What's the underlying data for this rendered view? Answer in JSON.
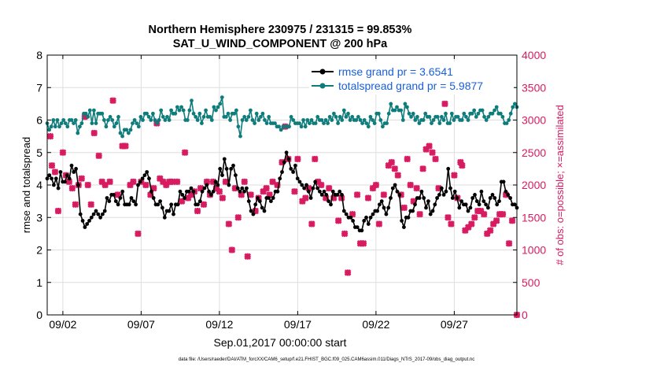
{
  "chart_data": {
    "type": "line",
    "title_line1": "Northern Hemisphere 230975 / 231315 = 99.853%",
    "title_line2": "SAT_U_WIND_COMPONENT @ 200 hPa",
    "xlabel": "Sep.01,2017 00:00:00 start",
    "ylabel_left": "rmse and totalspread",
    "ylabel_right": "# of obs: o=possible; ×=assimilated",
    "footer": "data file: /Users/raeder/DAI/ATM_forcXX/CAM6_setup/f.e21.FHIST_BGC.f09_025.CAM6assim.011/Diags_NTrS_2017-09/obs_diag_output.nc",
    "xlim": [
      1.0,
      31.0
    ],
    "ylim_left": [
      0,
      8
    ],
    "ylim_right": [
      0,
      4000
    ],
    "x_ticks": [
      2,
      7,
      12,
      17,
      22,
      27
    ],
    "x_tick_labels": [
      "09/02",
      "09/07",
      "09/12",
      "09/17",
      "09/22",
      "09/27"
    ],
    "y_left_ticks": [
      0,
      1,
      2,
      3,
      4,
      5,
      6,
      7,
      8
    ],
    "y_left_tick_labels": [
      "0",
      "1",
      "2",
      "3",
      "4",
      "5",
      "6",
      "7",
      "8"
    ],
    "y_right_ticks": [
      0,
      500,
      1000,
      1500,
      2000,
      2500,
      3000,
      3500,
      4000
    ],
    "y_right_tick_labels": [
      "0",
      "500",
      "1000",
      "1500",
      "2000",
      "2500",
      "3000",
      "3500",
      "4000"
    ],
    "grid": true,
    "legend_position": "top-right",
    "colors": {
      "rmse": "#000000",
      "spread": "#0e7c7b",
      "obs": "#d81b60",
      "legend_text": "#1a5fd6",
      "grid": "#dedede"
    },
    "series": [
      {
        "name": "rmse grand pr = 3.6541",
        "axis": "left",
        "values": [
          4.2,
          4.3,
          4.2,
          4.0,
          4.2,
          3.9,
          4.4,
          4.1,
          4.1,
          4.3,
          4.2,
          4.6,
          4.4,
          4.5,
          4.0,
          3.1,
          2.9,
          2.7,
          2.8,
          2.9,
          3.0,
          3.1,
          3.2,
          3.1,
          3.0,
          3.1,
          3.2,
          3.6,
          3.5,
          3.7,
          3.7,
          3.5,
          3.4,
          3.6,
          3.8,
          3.4,
          3.4,
          3.4,
          3.6,
          3.5,
          3.4,
          4.0,
          4.1,
          4.2,
          4.3,
          4.4,
          4.2,
          3.8,
          3.6,
          3.4,
          3.4,
          3.5,
          3.3,
          3.0,
          3.2,
          3.2,
          3.4,
          3.1,
          3.4,
          3.4,
          3.8,
          3.7,
          3.6,
          3.8,
          3.8,
          3.9,
          3.8,
          3.4,
          3.4,
          3.5,
          3.8,
          3.9,
          4.0,
          3.8,
          3.7,
          3.8,
          4.1,
          4.0,
          4.5,
          4.3,
          4.8,
          4.5,
          4.0,
          4.5,
          4.6,
          4.3,
          3.9,
          3.8,
          3.9,
          3.8,
          3.9,
          3.5,
          3.2,
          3.1,
          3.4,
          3.6,
          3.5,
          3.3,
          3.2,
          3.6,
          3.6,
          3.5,
          3.6,
          3.8,
          3.8,
          4.2,
          4.4,
          4.7,
          5.0,
          4.8,
          4.5,
          4.4,
          4.6,
          4.2,
          4.1,
          4.0,
          3.9,
          4.0,
          3.8,
          3.6,
          3.9,
          4.1,
          3.9,
          3.8,
          3.7,
          3.8,
          3.7,
          3.5,
          3.4,
          3.8,
          3.7,
          3.7,
          3.8,
          3.7,
          3.2,
          3.1,
          3.0,
          3.0,
          2.9,
          2.7,
          2.7,
          2.6,
          2.6,
          2.9,
          3.0,
          2.8,
          3.0,
          3.1,
          3.2,
          3.2,
          3.4,
          3.5,
          3.3,
          3.1,
          3.3,
          3.6,
          3.9,
          4.0,
          3.8,
          3.7,
          2.9,
          2.7,
          3.0,
          3.0,
          3.2,
          3.2,
          3.4,
          3.6,
          3.6,
          3.8,
          3.6,
          3.3,
          3.5,
          3.1,
          3.2,
          3.4,
          3.6,
          3.7,
          3.9,
          3.7,
          3.8,
          4.5,
          3.9,
          3.6,
          3.8,
          3.6,
          3.3,
          3.5,
          3.4,
          3.4,
          3.2,
          3.3,
          3.6,
          3.7,
          3.5,
          3.4,
          3.8,
          3.5,
          3.4,
          3.3,
          3.6,
          3.7,
          3.6,
          3.4,
          3.5,
          4.1,
          4.1,
          3.8,
          3.7,
          3.6,
          3.4,
          3.4,
          3.3
        ]
      },
      {
        "name": "totalspread grand pr = 5.9877",
        "axis": "left",
        "values": [
          5.9,
          5.7,
          5.8,
          6.0,
          5.8,
          6.0,
          5.8,
          5.9,
          6.0,
          5.9,
          5.8,
          6.0,
          6.0,
          5.9,
          6.0,
          5.6,
          5.8,
          5.9,
          6.2,
          6.2,
          6.1,
          6.3,
          5.9,
          6.3,
          5.9,
          6.2,
          6.2,
          6.2,
          6.0,
          5.8,
          6.0,
          6.1,
          6.0,
          5.8,
          5.9,
          6.1,
          5.6,
          5.5,
          5.7,
          5.7,
          5.6,
          5.7,
          5.9,
          6.0,
          5.9,
          5.8,
          6.1,
          6.0,
          6.2,
          6.2,
          6.1,
          6.0,
          6.2,
          6.0,
          5.9,
          6.0,
          6.3,
          6.1,
          6.0,
          6.1,
          6.0,
          6.3,
          6.2,
          6.2,
          6.4,
          6.3,
          6.4,
          6.3,
          6.0,
          6.0,
          6.3,
          6.6,
          6.2,
          6.1,
          6.0,
          6.2,
          5.9,
          6.1,
          6.3,
          6.1,
          6.1,
          6.0,
          6.4,
          6.3,
          6.4,
          6.5,
          6.7,
          6.1,
          6.1,
          6.2,
          6.0,
          6.2,
          6.2,
          6.3,
          5.8,
          5.5,
          6.0,
          6.1,
          6.0,
          6.1,
          6.3,
          6.0,
          5.9,
          6.2,
          6.0,
          6.1,
          6.2,
          6.0,
          5.9,
          6.1,
          5.9,
          5.9,
          5.9,
          5.8,
          5.8,
          5.7,
          5.8,
          5.8,
          5.8,
          5.8,
          6.1,
          6.0,
          5.9,
          5.9,
          5.9,
          5.8,
          6.0,
          5.8,
          6.0,
          5.9,
          6.0,
          5.9,
          5.9,
          6.1,
          6.0,
          6.0,
          5.9,
          6.0,
          5.9,
          6.1,
          6.0,
          6.2,
          6.1,
          5.9,
          6.1,
          6.0,
          6.3,
          6.1,
          6.2,
          6.0,
          6.1,
          6.0,
          6.0,
          6.1,
          6.0,
          5.9,
          6.0,
          5.9,
          5.8,
          6.1,
          6.0,
          5.9,
          6.2,
          6.2,
          6.0,
          5.8,
          5.9,
          5.9,
          6.2,
          6.5,
          6.3,
          6.3,
          6.4,
          6.3,
          6.3,
          6.0,
          6.5,
          6.4,
          6.2,
          6.1,
          6.2,
          6.0,
          6.1,
          5.9,
          6.0,
          6.0,
          6.2,
          6.1,
          6.1,
          5.9,
          6.0,
          6.1,
          6.1,
          5.9,
          6.1,
          6.0,
          6.2,
          5.9,
          5.9,
          6.2,
          6.0,
          6.1,
          6.1,
          6.0,
          6.0,
          6.2,
          6.1,
          6.0,
          6.2,
          6.2,
          6.3,
          6.1,
          6.2,
          6.3,
          6.3,
          6.1,
          6.0,
          6.1,
          6.2,
          6.2,
          6.3,
          6.4,
          6.2,
          6.2,
          6.1,
          5.9,
          5.9,
          6.0,
          6.2,
          6.4,
          6.5,
          6.4
        ]
      },
      {
        "name": "# of obs assimilated",
        "axis": "right",
        "points": [
          [
            1.2,
            2750
          ],
          [
            1.3,
            2300
          ],
          [
            1.5,
            2200
          ],
          [
            1.7,
            1600
          ],
          [
            2.0,
            2500
          ],
          [
            2.2,
            2150
          ],
          [
            2.4,
            2050
          ],
          [
            2.6,
            1950
          ],
          [
            2.8,
            1700
          ],
          [
            3.0,
            2000
          ],
          [
            3.2,
            2100
          ],
          [
            3.4,
            3050
          ],
          [
            3.6,
            2000
          ],
          [
            3.8,
            1700
          ],
          [
            4.0,
            2800
          ],
          [
            4.3,
            2450
          ],
          [
            4.5,
            2050
          ],
          [
            4.7,
            2000
          ],
          [
            5.0,
            2050
          ],
          [
            5.2,
            3300
          ],
          [
            5.5,
            1850
          ],
          [
            5.8,
            2600
          ],
          [
            6.0,
            2600
          ],
          [
            6.3,
            2000
          ],
          [
            6.5,
            2050
          ],
          [
            6.8,
            1250
          ],
          [
            7.0,
            2050
          ],
          [
            7.3,
            2000
          ],
          [
            7.6,
            1850
          ],
          [
            7.8,
            1950
          ],
          [
            8.0,
            2950
          ],
          [
            8.2,
            2100
          ],
          [
            8.4,
            2050
          ],
          [
            8.6,
            2000
          ],
          [
            8.8,
            2050
          ],
          [
            9.0,
            2050
          ],
          [
            9.3,
            2050
          ],
          [
            9.6,
            1750
          ],
          [
            9.8,
            2500
          ],
          [
            10.0,
            1800
          ],
          [
            10.2,
            1850
          ],
          [
            10.4,
            1900
          ],
          [
            10.6,
            1600
          ],
          [
            10.8,
            1950
          ],
          [
            11.0,
            1700
          ],
          [
            11.2,
            2050
          ],
          [
            11.4,
            1850
          ],
          [
            11.6,
            2050
          ],
          [
            11.8,
            1950
          ],
          [
            12.0,
            1900
          ],
          [
            12.2,
            1800
          ],
          [
            12.4,
            2050
          ],
          [
            12.6,
            1400
          ],
          [
            12.8,
            1000
          ],
          [
            13.0,
            1950
          ],
          [
            13.2,
            1500
          ],
          [
            13.4,
            1850
          ],
          [
            13.6,
            2050
          ],
          [
            13.8,
            900
          ],
          [
            14.0,
            1850
          ],
          [
            14.3,
            1600
          ],
          [
            14.5,
            1800
          ],
          [
            14.8,
            1900
          ],
          [
            15.0,
            1950
          ],
          [
            15.2,
            1850
          ],
          [
            15.4,
            2050
          ],
          [
            15.7,
            2000
          ],
          [
            16.0,
            2350
          ],
          [
            16.2,
            2900
          ],
          [
            16.4,
            2400
          ],
          [
            16.8,
            1900
          ],
          [
            17.0,
            2400
          ],
          [
            17.3,
            1750
          ],
          [
            17.5,
            1800
          ],
          [
            17.7,
            1950
          ],
          [
            17.9,
            1400
          ],
          [
            18.1,
            2400
          ],
          [
            18.3,
            2050
          ],
          [
            18.5,
            2000
          ],
          [
            18.8,
            1800
          ],
          [
            19.0,
            1950
          ],
          [
            19.3,
            1800
          ],
          [
            19.6,
            1450
          ],
          [
            19.8,
            1800
          ],
          [
            20.0,
            1250
          ],
          [
            20.2,
            650
          ],
          [
            20.5,
            1550
          ],
          [
            20.8,
            1850
          ],
          [
            21.0,
            1100
          ],
          [
            21.2,
            1100
          ],
          [
            21.5,
            1800
          ],
          [
            21.8,
            1950
          ],
          [
            22.0,
            2000
          ],
          [
            22.2,
            1400
          ],
          [
            22.5,
            1850
          ],
          [
            22.8,
            2300
          ],
          [
            23.0,
            2350
          ],
          [
            23.2,
            2250
          ],
          [
            23.4,
            2150
          ],
          [
            23.6,
            1850
          ],
          [
            23.8,
            1650
          ],
          [
            24.0,
            2400
          ],
          [
            24.2,
            2000
          ],
          [
            24.4,
            1750
          ],
          [
            24.6,
            1950
          ],
          [
            24.8,
            1550
          ],
          [
            25.0,
            2250
          ],
          [
            25.2,
            2550
          ],
          [
            25.4,
            2600
          ],
          [
            25.6,
            2500
          ],
          [
            25.8,
            2400
          ],
          [
            26.0,
            1950
          ],
          [
            26.2,
            3450
          ],
          [
            26.4,
            3250
          ],
          [
            26.6,
            1500
          ],
          [
            26.8,
            1400
          ],
          [
            27.0,
            2150
          ],
          [
            27.2,
            1800
          ],
          [
            27.4,
            2350
          ],
          [
            27.5,
            2300
          ],
          [
            27.7,
            1300
          ],
          [
            27.9,
            1350
          ],
          [
            28.1,
            1400
          ],
          [
            28.3,
            1500
          ],
          [
            28.5,
            1600
          ],
          [
            28.7,
            1600
          ],
          [
            28.9,
            1550
          ],
          [
            29.1,
            1250
          ],
          [
            29.3,
            1300
          ],
          [
            29.5,
            1400
          ],
          [
            29.7,
            1450
          ],
          [
            29.9,
            1550
          ],
          [
            30.1,
            1550
          ],
          [
            30.3,
            1850
          ],
          [
            30.5,
            1100
          ],
          [
            30.7,
            1450
          ],
          [
            31.0,
            0
          ]
        ]
      }
    ]
  }
}
